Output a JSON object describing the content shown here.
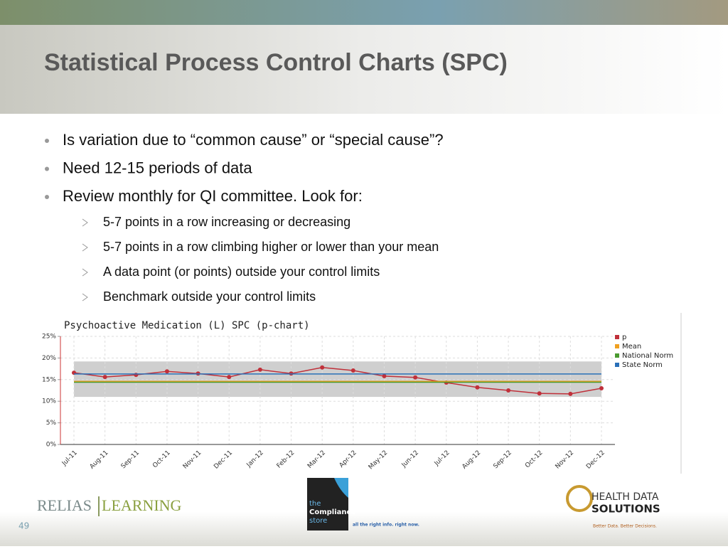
{
  "slide": {
    "title": "Statistical Process Control Charts (SPC)",
    "bullets": [
      "Is variation due to “common cause” or “special cause”?",
      "Need 12-15 periods of data",
      "Review monthly for QI committee. Look for:"
    ],
    "sub_bullets": [
      "5-7 points in a row increasing or decreasing",
      "5-7 points in a row climbing higher or lower than your mean",
      "A data point (or points) outside your control limits",
      "Benchmark outside your control limits"
    ],
    "footer": {
      "left_logo": [
        "RELIAS",
        "LEARNING"
      ],
      "center_logo": [
        "the",
        "Compliance",
        "store"
      ],
      "center_tagline": "all the right info.  right now.",
      "right_logo": [
        "HEALTH DATA",
        "SOLUTIONS"
      ],
      "right_tagline": "Better Data. Better Decisions.",
      "page_number": "49"
    }
  },
  "chart_data": {
    "type": "line",
    "title": "Psychoactive Medication (L) SPC (p-chart)",
    "categories": [
      "Jul-11",
      "Aug-11",
      "Sep-11",
      "Oct-11",
      "Nov-11",
      "Dec-11",
      "Jan-12",
      "Feb-12",
      "Mar-12",
      "Apr-12",
      "May-12",
      "Jun-12",
      "Jul-12",
      "Aug-12",
      "Sep-12",
      "Oct-12",
      "Nov-12",
      "Dec-12"
    ],
    "series": [
      {
        "name": "p",
        "color": "#c0303a",
        "values": [
          16.6,
          15.6,
          16.1,
          16.9,
          16.4,
          15.6,
          17.3,
          16.4,
          17.8,
          17.1,
          15.8,
          15.5,
          14.3,
          13.2,
          12.5,
          11.8,
          11.7,
          13.0
        ]
      },
      {
        "name": "Mean",
        "color": "#f0a020",
        "value": 14.6
      },
      {
        "name": "National Norm",
        "color": "#4a9a30",
        "value": 14.4
      },
      {
        "name": "State Norm",
        "color": "#2a70b8",
        "value": 16.3
      }
    ],
    "control_limits": [
      11.0,
      19.2
    ],
    "ylim": [
      0,
      25
    ],
    "yticks": [
      {
        "value": 0,
        "label": "0%"
      },
      {
        "value": 5,
        "label": "5%"
      },
      {
        "value": 10,
        "label": "10%"
      },
      {
        "value": 15,
        "label": "15%"
      },
      {
        "value": 20,
        "label": "20%"
      },
      {
        "value": 25,
        "label": "25%"
      }
    ],
    "grid": true,
    "legend": "right"
  }
}
